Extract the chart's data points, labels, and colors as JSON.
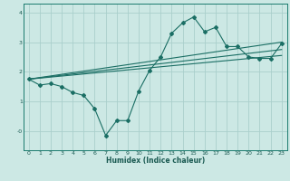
{
  "xlabel": "Humidex (Indice chaleur)",
  "bg_color": "#cce8e4",
  "grid_color": "#aacfcc",
  "line_color": "#1a6e64",
  "xlim": [
    -0.5,
    23.5
  ],
  "ylim": [
    -0.65,
    4.3
  ],
  "xticks": [
    0,
    1,
    2,
    3,
    4,
    5,
    6,
    7,
    8,
    9,
    10,
    11,
    12,
    13,
    14,
    15,
    16,
    17,
    18,
    19,
    20,
    21,
    22,
    23
  ],
  "yticks": [
    0,
    1,
    2,
    3,
    4
  ],
  "ytick_labels": [
    "-0",
    "1",
    "2",
    "3",
    "4"
  ],
  "main_line_x": [
    0,
    1,
    2,
    3,
    4,
    5,
    6,
    7,
    8,
    9,
    10,
    11,
    12,
    13,
    14,
    15,
    16,
    17,
    18,
    19,
    20,
    21,
    22,
    23
  ],
  "main_line_y": [
    1.75,
    1.55,
    1.6,
    1.5,
    1.3,
    1.2,
    0.75,
    -0.15,
    0.35,
    0.35,
    1.35,
    2.05,
    2.5,
    3.3,
    3.65,
    3.85,
    3.35,
    3.5,
    2.85,
    2.85,
    2.5,
    2.45,
    2.45,
    2.95
  ],
  "reg_lines": [
    {
      "x": [
        0,
        23
      ],
      "y": [
        1.75,
        3.0
      ]
    },
    {
      "x": [
        0,
        23
      ],
      "y": [
        1.75,
        2.75
      ]
    },
    {
      "x": [
        0,
        23
      ],
      "y": [
        1.75,
        2.55
      ]
    }
  ]
}
